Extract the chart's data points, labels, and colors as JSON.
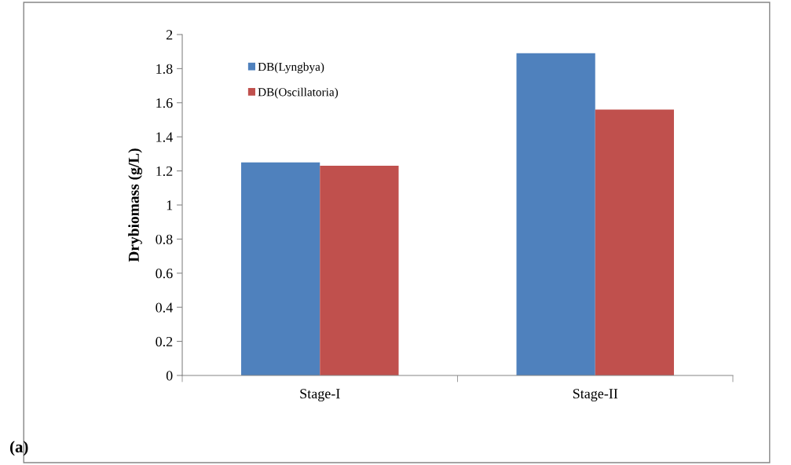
{
  "chart_data": {
    "type": "bar",
    "ylabel": "Drybiomass (g/L)",
    "categories": [
      "Stage-I",
      "Stage-II"
    ],
    "series": [
      {
        "name": "DB(Lyngbya)",
        "color": "#4f81bd",
        "values": [
          1.25,
          1.89
        ]
      },
      {
        "name": "DB(Oscillatoria)",
        "color": "#c0504d",
        "values": [
          1.23,
          1.56
        ]
      }
    ],
    "ylim": [
      0,
      2
    ],
    "yticks": [
      0,
      0.2,
      0.4,
      0.6,
      0.8,
      1,
      1.2,
      1.4,
      1.6,
      1.8,
      2
    ],
    "grid": false,
    "legend": "top left",
    "annotations": [
      "(a)"
    ]
  }
}
